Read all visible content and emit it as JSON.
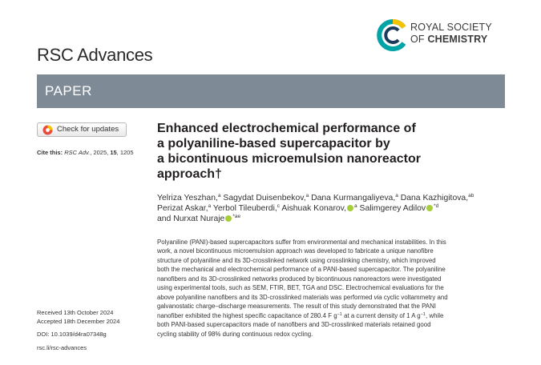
{
  "header": {
    "journal_name": "RSC Advances",
    "publisher_line1": "ROYAL SOCIETY",
    "publisher_line2_prefix": "OF ",
    "publisher_line2_bold": "CHEMISTRY",
    "section": "PAPER",
    "brand_colors": {
      "teal": "#00a3a6",
      "navy": "#1b3a5c",
      "yellow": "#f5c400",
      "banner": "#7e8b97"
    }
  },
  "sidebar": {
    "check_updates": "Check for updates",
    "cite_prefix": "Cite this:",
    "cite_journal": "RSC Adv.",
    "cite_year": ", 2025, ",
    "cite_volume": "15",
    "cite_page": ", 1205",
    "received": "Received 13th October 2024",
    "accepted": "Accepted 18th December 2024",
    "doi": "DOI: 10.1039/d4ra07348g",
    "url": "rsc.li/rsc-advances"
  },
  "article": {
    "title_lines": [
      "Enhanced electrochemical performance of",
      "a polyaniline-based supercapacitor by",
      "a bicontinuous microemulsion nanoreactor",
      "approach†"
    ],
    "authors": {
      "a1": "Yelriza Yeszhan,",
      "a1_aff": "a",
      "a2": " Sagydat Duisenbekov,",
      "a2_aff": "a",
      "a3": " Dana Kurmangaliyeva,",
      "a3_aff": "a",
      "a4": " Dana Kazhigitova,",
      "a4_aff": "ab",
      "a5": "Perizat Askar,",
      "a5_aff": "a",
      "a6": " Yerbol Tileuberdi,",
      "a6_aff": "c",
      "a7": " Aishuak Konarov,",
      "a7_aff": "a",
      "a8": " Salimgerey Adilov",
      "a8_aff": "*d",
      "and": "and ",
      "a9": "Nurxat Nuraje",
      "a9_aff": "*ae"
    },
    "abstract": {
      "l1": "Polyaniline (PANI)-based supercapacitors suffer from environmental and mechanical instabilities. In this",
      "l2": "work, a novel bicontinuous microemulsion approach was developed to fabricate a unique nanofibre",
      "l3": "structure of polyaniline and its 3D-crosslinked network using crosslinking chemistry, which improved",
      "l4": "both the mechanical and electrochemical performance of a PANI-based supercapacitor. The polyaniline",
      "l5": "nanofibers and its 3D-crosslinked networks produced by bicontinuous nanoreactors were investigated",
      "l6": "using experimental tools, such as SEM, FTIR, BET, TGA and DSC. Electrochemical evaluations for the",
      "l7a": "above polyaniline nanofibers and its 3D-crosslinked materials was performed ",
      "l7b": "via",
      "l7c": " cyclic voltammetry and",
      "l8": "galvanostatic charge–discharge measurements. The result of this study demonstrated that the PANI",
      "l9a": "nanofiber exhibited the highest specific capacitance of 280.4 F g",
      "l9sup1": "−1",
      "l9b": " at a current density of 1 A g",
      "l9sup2": "−1",
      "l9c": ", while",
      "l10": "both PANI-based supercapacitors made of nanofibers and 3D-crosslinked materials retained good",
      "l11": "cycling stability of 98% during continuous redox cycling."
    }
  }
}
